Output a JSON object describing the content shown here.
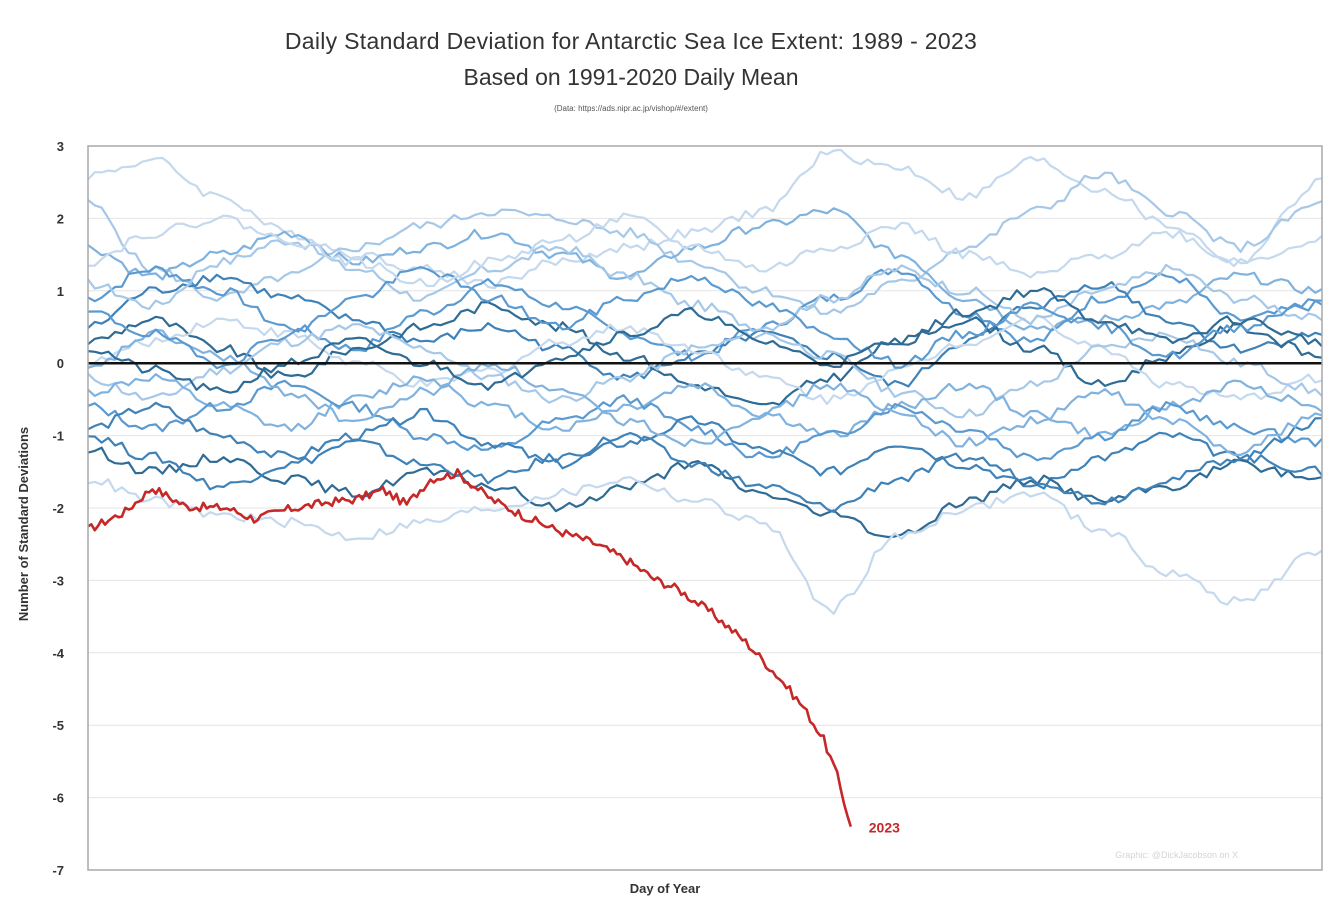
{
  "header": {
    "title": "Daily Standard Deviation for Antarctic Sea Ice Extent: 1989 - 2023",
    "subtitle": "Based on 1991-2020 Daily Mean",
    "source": "(Data: https://ads.nipr.ac.jp/vishop/#/extent)"
  },
  "credit": "Graphic: @DickJacobson on X",
  "colors": {
    "highlight": "#c62828",
    "zero_line": "#111111",
    "grid": "#e4e4e4",
    "frame": "#a8a8a8",
    "historical_palette": [
      "#2e6b95",
      "#3f82b8",
      "#5b9ad0",
      "#7fb2de",
      "#a6c8e8",
      "#c5d9ee"
    ]
  },
  "chart_data": {
    "type": "line",
    "title": "Daily Standard Deviation for Antarctic Sea Ice Extent: 1989 - 2023",
    "subtitle": "Based on 1991-2020 Daily Mean",
    "xlabel": "Day of Year",
    "ylabel": "Number of Standard Deviations",
    "xlim": [
      1,
      365
    ],
    "ylim": [
      -7,
      3
    ],
    "yticks": [
      "3",
      "2",
      "1",
      "0",
      "-1",
      "-2",
      "-3",
      "-4",
      "-5",
      "-6",
      "-7"
    ],
    "grid": "horizontal",
    "reference_line": 0,
    "legend": "none",
    "series": [
      {
        "name": "2023",
        "highlight": true,
        "x": [
          1,
          12,
          20,
          30,
          42,
          50,
          60,
          72,
          80,
          88,
          95,
          102,
          110,
          120,
          130,
          140,
          150,
          160,
          168,
          175,
          185,
          195,
          205,
          212,
          218,
          222,
          226
        ],
        "y": [
          -2.3,
          -2.05,
          -1.72,
          -1.98,
          -2.0,
          -2.15,
          -2.02,
          -1.92,
          -1.88,
          -1.75,
          -1.95,
          -1.6,
          -1.52,
          -1.88,
          -2.12,
          -2.32,
          -2.48,
          -2.72,
          -2.98,
          -3.12,
          -3.45,
          -3.85,
          -4.35,
          -4.75,
          -5.2,
          -5.7,
          -6.4
        ]
      },
      {
        "x": [
          1,
          20,
          40,
          60,
          80,
          100,
          120,
          140,
          160,
          180,
          200,
          220,
          240,
          260,
          280,
          300,
          320,
          340,
          365
        ],
        "y": [
          2.6,
          2.8,
          2.3,
          1.8,
          1.5,
          1.3,
          1.1,
          1.4,
          1.6,
          1.8,
          2.1,
          2.9,
          2.7,
          2.3,
          2.8,
          2.4,
          1.9,
          1.4,
          2.5
        ]
      },
      {
        "x": [
          1,
          20,
          40,
          60,
          80,
          100,
          120,
          140,
          160,
          180,
          200,
          220,
          240,
          260,
          280,
          300,
          320,
          340,
          365
        ],
        "y": [
          2.2,
          1.3,
          0.9,
          1.2,
          1.6,
          1.9,
          2.1,
          2.0,
          1.8,
          1.4,
          1.0,
          0.7,
          1.1,
          1.6,
          2.1,
          2.6,
          2.1,
          1.6,
          2.2
        ]
      },
      {
        "x": [
          1,
          20,
          40,
          60,
          80,
          100,
          120,
          140,
          160,
          180,
          200,
          220,
          240,
          260,
          280,
          300,
          320,
          340,
          365
        ],
        "y": [
          1.6,
          1.2,
          1.5,
          1.8,
          1.4,
          1.6,
          1.8,
          1.5,
          1.2,
          1.6,
          1.9,
          2.1,
          1.5,
          0.9,
          0.5,
          0.6,
          0.8,
          1.2,
          1.0
        ]
      },
      {
        "x": [
          1,
          20,
          40,
          60,
          80,
          100,
          120,
          140,
          160,
          180,
          200,
          220,
          240,
          260,
          280,
          300,
          320,
          340,
          365
        ],
        "y": [
          0.9,
          1.3,
          1.0,
          0.5,
          0.2,
          0.7,
          1.1,
          0.8,
          0.4,
          0.1,
          0.5,
          0.9,
          1.3,
          0.7,
          0.3,
          0.9,
          1.2,
          0.6,
          0.8
        ]
      },
      {
        "x": [
          1,
          20,
          40,
          60,
          80,
          100,
          120,
          140,
          160,
          180,
          200,
          220,
          240,
          260,
          280,
          300,
          320,
          340,
          365
        ],
        "y": [
          0.5,
          1.0,
          1.2,
          0.9,
          0.6,
          0.3,
          0.5,
          0.2,
          -0.2,
          0.1,
          0.4,
          0.1,
          -0.3,
          0.3,
          0.8,
          1.1,
          0.6,
          0.2,
          0.4
        ]
      },
      {
        "x": [
          1,
          20,
          40,
          60,
          80,
          100,
          120,
          140,
          160,
          180,
          200,
          220,
          240,
          260,
          280,
          300,
          320,
          340,
          365
        ],
        "y": [
          0.3,
          0.6,
          0.2,
          -0.2,
          0.2,
          0.5,
          0.8,
          0.5,
          0.1,
          -0.3,
          -0.6,
          -0.2,
          0.3,
          0.6,
          0.2,
          -0.3,
          0.1,
          0.5,
          0.1
        ]
      },
      {
        "x": [
          1,
          20,
          40,
          60,
          80,
          100,
          120,
          140,
          160,
          180,
          200,
          220,
          240,
          260,
          280,
          300,
          320,
          340,
          365
        ],
        "y": [
          0.0,
          0.3,
          0.6,
          0.4,
          0.0,
          -0.3,
          -0.1,
          0.3,
          0.5,
          0.2,
          -0.2,
          -0.5,
          -0.1,
          0.3,
          0.6,
          0.2,
          -0.3,
          -0.5,
          -0.2
        ]
      },
      {
        "x": [
          1,
          20,
          40,
          60,
          80,
          100,
          120,
          140,
          160,
          180,
          200,
          220,
          240,
          260,
          280,
          300,
          320,
          340,
          365
        ],
        "y": [
          -0.2,
          -0.5,
          -0.1,
          0.3,
          0.5,
          0.2,
          -0.2,
          -0.5,
          -0.2,
          0.2,
          0.4,
          0.1,
          -0.4,
          -0.7,
          -0.3,
          0.2,
          0.4,
          0.0,
          -0.4
        ]
      },
      {
        "x": [
          1,
          20,
          40,
          60,
          80,
          100,
          120,
          140,
          160,
          180,
          200,
          220,
          240,
          260,
          280,
          300,
          320,
          340,
          365
        ],
        "y": [
          -0.4,
          -0.2,
          -0.6,
          -0.9,
          -0.5,
          -0.2,
          -0.6,
          -0.9,
          -0.6,
          -0.3,
          -0.7,
          -1.0,
          -0.6,
          -0.3,
          -0.7,
          -1.0,
          -0.6,
          -0.3,
          -0.6
        ]
      },
      {
        "x": [
          1,
          20,
          40,
          60,
          80,
          100,
          120,
          140,
          160,
          180,
          200,
          220,
          240,
          260,
          280,
          300,
          320,
          340,
          365
        ],
        "y": [
          -0.6,
          -0.9,
          -0.6,
          -0.3,
          -0.6,
          -1.0,
          -1.2,
          -0.8,
          -0.5,
          -0.9,
          -1.3,
          -1.0,
          -0.6,
          -0.9,
          -1.3,
          -1.0,
          -0.6,
          -0.9,
          -1.1
        ]
      },
      {
        "x": [
          1,
          20,
          40,
          60,
          80,
          100,
          120,
          140,
          160,
          180,
          200,
          220,
          240,
          260,
          280,
          300,
          320,
          340,
          365
        ],
        "y": [
          -0.9,
          -0.6,
          -1.0,
          -1.3,
          -1.0,
          -0.7,
          -1.1,
          -1.4,
          -1.1,
          -0.8,
          -1.2,
          -1.5,
          -1.1,
          -1.4,
          -1.7,
          -1.3,
          -1.0,
          -1.3,
          -0.8
        ]
      },
      {
        "x": [
          1,
          20,
          40,
          60,
          80,
          100,
          120,
          140,
          160,
          180,
          200,
          220,
          240,
          260,
          280,
          300,
          320,
          340,
          365
        ],
        "y": [
          -1.2,
          -1.5,
          -1.3,
          -1.6,
          -1.8,
          -1.5,
          -1.7,
          -2.0,
          -1.7,
          -1.4,
          -1.8,
          -2.1,
          -2.4,
          -1.9,
          -1.6,
          -1.9,
          -1.7,
          -1.4,
          -1.6
        ]
      },
      {
        "x": [
          1,
          20,
          40,
          60,
          80,
          100,
          120,
          140,
          160,
          180,
          200,
          220,
          240,
          260,
          280,
          300,
          320,
          340,
          365
        ],
        "y": [
          -1.6,
          -1.9,
          -2.1,
          -2.2,
          -2.4,
          -2.2,
          -2.0,
          -1.8,
          -1.6,
          -1.9,
          -2.2,
          -3.4,
          -2.4,
          -2.0,
          -1.8,
          -2.3,
          -2.9,
          -3.3,
          -2.6
        ]
      },
      {
        "x": [
          1,
          20,
          40,
          60,
          80,
          100,
          120,
          140,
          160,
          180,
          200,
          220,
          240,
          260,
          280,
          300,
          320,
          340,
          365
        ],
        "y": [
          1.1,
          0.8,
          1.4,
          1.7,
          1.3,
          0.9,
          1.3,
          1.6,
          1.2,
          0.8,
          0.5,
          0.9,
          1.3,
          1.0,
          0.6,
          1.0,
          1.3,
          0.9,
          0.6
        ]
      },
      {
        "x": [
          1,
          20,
          40,
          60,
          80,
          100,
          120,
          140,
          160,
          180,
          200,
          220,
          240,
          260,
          280,
          300,
          320,
          340,
          365
        ],
        "y": [
          -0.1,
          0.4,
          0.1,
          -0.4,
          -0.8,
          -0.4,
          0.0,
          -0.4,
          -0.8,
          -1.1,
          -0.7,
          -0.3,
          -0.7,
          -1.1,
          -0.8,
          -0.4,
          -0.8,
          -1.2,
          -0.7
        ]
      },
      {
        "x": [
          1,
          20,
          40,
          60,
          80,
          100,
          120,
          140,
          160,
          180,
          200,
          220,
          240,
          260,
          280,
          300,
          320,
          340,
          365
        ],
        "y": [
          0.7,
          0.4,
          0.0,
          0.4,
          0.9,
          1.3,
          0.9,
          0.5,
          0.9,
          1.2,
          0.8,
          0.4,
          0.0,
          0.4,
          0.8,
          0.5,
          0.1,
          0.5,
          0.9
        ]
      },
      {
        "x": [
          1,
          20,
          40,
          60,
          80,
          100,
          120,
          140,
          160,
          180,
          200,
          220,
          240,
          260,
          280,
          300,
          320,
          340,
          365
        ],
        "y": [
          -1.0,
          -1.3,
          -1.7,
          -1.4,
          -1.1,
          -1.4,
          -1.6,
          -1.3,
          -1.0,
          -1.4,
          -1.7,
          -2.0,
          -1.6,
          -1.3,
          -1.6,
          -1.9,
          -1.6,
          -1.3,
          -1.5
        ]
      },
      {
        "x": [
          1,
          20,
          40,
          60,
          80,
          100,
          120,
          140,
          160,
          180,
          200,
          220,
          240,
          260,
          280,
          300,
          320,
          340,
          365
        ],
        "y": [
          0.2,
          -0.1,
          -0.4,
          0.0,
          0.3,
          0.0,
          -0.3,
          0.1,
          0.4,
          0.7,
          0.3,
          0.0,
          0.3,
          0.7,
          1.0,
          0.6,
          0.3,
          0.6,
          0.3
        ]
      },
      {
        "x": [
          1,
          20,
          40,
          60,
          80,
          100,
          120,
          140,
          160,
          180,
          200,
          220,
          240,
          260,
          280,
          300,
          320,
          340,
          365
        ],
        "y": [
          1.4,
          1.8,
          2.0,
          1.7,
          1.4,
          1.1,
          1.4,
          1.7,
          2.0,
          1.6,
          1.3,
          1.6,
          1.9,
          1.5,
          1.2,
          1.5,
          1.8,
          1.4,
          1.7
        ]
      }
    ]
  }
}
